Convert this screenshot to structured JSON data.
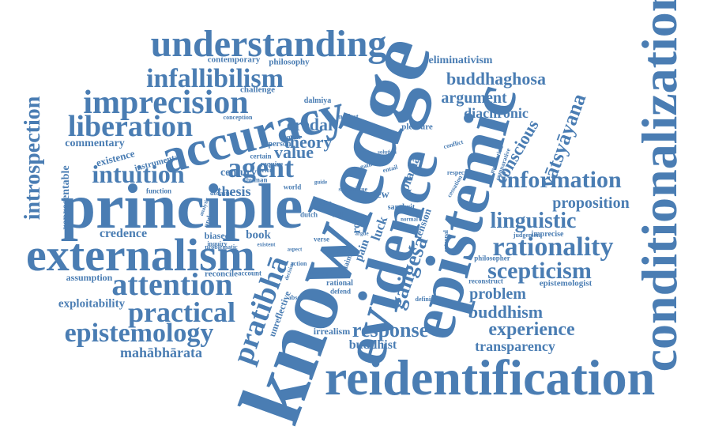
{
  "style": {
    "color": "#4a7db3"
  },
  "words": {
    "knowledge": "knowledge",
    "epistemic": "epistemic",
    "evidence": "evidence",
    "principle": "principle",
    "reidentification": "reidentification",
    "conditionalization": "conditionalization",
    "externalism": "externalism",
    "accuracy": "accuracy",
    "understanding": "understanding",
    "imprecision": "imprecision",
    "liberation": "liberation",
    "infallibilism": "infallibilism",
    "attention": "attention",
    "practical": "practical",
    "epistemology": "epistemology",
    "agent": "agent",
    "intuition": "intuition",
    "introspection": "introspection",
    "pratibha": "pratibhā",
    "rationality": "rationality",
    "scepticism": "scepticism",
    "information": "information",
    "linguistic": "linguistic",
    "vatsyayana": "vātsyāyana",
    "gangesa": "gaṅgeśa",
    "response": "response",
    "experience": "experience",
    "transparency": "transparency",
    "buddhism": "buddhism",
    "problem": "problem",
    "proposition": "proposition",
    "buddhaghosa": "buddhaghosa",
    "argument": "argument",
    "diachronic": "diachronic",
    "eliminativism": "eliminativism",
    "conscious": "conscious",
    "mahabharata": "mahābhārata",
    "exploitability": "exploitability",
    "credence": "credence",
    "theory": "theory",
    "credal": "credal",
    "value": "value",
    "commentary": "commentary",
    "representable": "representable",
    "existence": "existence",
    "contemporary": "contemporary",
    "philosophy": "philosophy",
    "challenge": "challenge",
    "century": "century",
    "thesis": "thesis",
    "book": "book",
    "biased": "biased",
    "reconcile": "reconcile",
    "assumption": "assumption",
    "buddhist": "buddhist",
    "irrealism": "irrealism",
    "unreflective": "unreflective",
    "dalmiya": "dalmiya",
    "modest": "modest",
    "person": "person",
    "context": "context",
    "certain": "certain",
    "human": "human",
    "instrumental": "instrumental",
    "function": "function",
    "tension": "tension",
    "pain": "pain",
    "luck": "luck",
    "role": "role",
    "view": "view",
    "sanskrit": "sanskrit",
    "prama": "pramā",
    "pleasure": "pleasure",
    "conflict": "conflict",
    "respect": "respect",
    "judgement": "judgement",
    "imprecise": "imprecise",
    "philosopher": "philosopher",
    "reconstruct": "reconstruct",
    "epistemologist": "epistemologist",
    "event": "event",
    "rational": "rational",
    "defend": "defend",
    "absolute": "absolute",
    "definition": "definition",
    "account": "account",
    "problematic": "problematic",
    "inquiry": "inquiry",
    "update": "update",
    "require": "require",
    "prior": "prior",
    "action": "action",
    "conception": "conception",
    "sense": "sense",
    "claim": "claim",
    "verse": "verse",
    "dutch": "dutch",
    "world": "world",
    "call": "call",
    "self": "self",
    "these": "these",
    "external": "external",
    "cessation": "cessation",
    "motivation": "motivation",
    "comparative": "comparative",
    "gather": "gather",
    "entail": "entail",
    "solution": "solution",
    "guide": "guide",
    "virtue": "virtue",
    "doxastic": "doxastic",
    "analytic": "analytic",
    "existent": "existent",
    "aspect": "aspect",
    "decision": "decision",
    "normal": "normal",
    "single": "single",
    "argue": "argue"
  }
}
